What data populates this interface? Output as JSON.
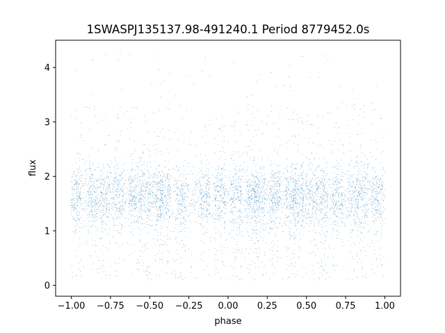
{
  "chart_data": {
    "type": "scatter",
    "title": "1SWASPJ135137.98-491240.1 Period 8779452.0s",
    "xlabel": "phase",
    "ylabel": "flux",
    "xlim": [
      -1.1,
      1.1
    ],
    "ylim": [
      -0.2,
      4.5
    ],
    "xticks": [
      -1.0,
      -0.75,
      -0.5,
      -0.25,
      0.0,
      0.25,
      0.5,
      0.75,
      1.0
    ],
    "xtick_labels": [
      "−1.00",
      "−0.75",
      "−0.50",
      "−0.25",
      "0.00",
      "0.25",
      "0.50",
      "0.75",
      "1.00"
    ],
    "yticks": [
      0,
      1,
      2,
      3,
      4
    ],
    "ytick_labels": [
      "0",
      "1",
      "2",
      "3",
      "4"
    ],
    "grid": false,
    "series": [
      {
        "color": "#1f77b4",
        "marker_size": 0.8,
        "x_range": [
          -1.0,
          1.0
        ],
        "band_centers_x": [
          -0.97,
          -0.86,
          -0.78,
          -0.7,
          -0.6,
          -0.53,
          -0.45,
          -0.4,
          -0.3,
          -0.15,
          -0.05,
          0.05,
          0.15,
          0.2,
          0.3,
          0.4,
          0.45,
          0.53,
          0.6,
          0.7,
          0.8,
          0.86,
          0.95
        ],
        "typical_flux_range": [
          0.1,
          3.3
        ],
        "median_flux": 1.65,
        "outliers_y_max": 4.3
      }
    ]
  }
}
